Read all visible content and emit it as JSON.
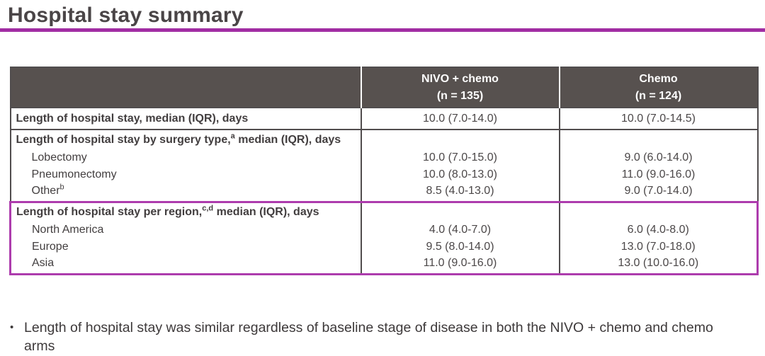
{
  "page": {
    "title": "Hospital stay summary",
    "bullet_glyph": "•",
    "bullet": "Length of hospital stay was similar regardless of baseline stage of disease in both the NIVO + chemo and chemo arms"
  },
  "colors": {
    "accent_rule": "#a12da3",
    "region_highlight_border": "#ad3cad",
    "header_bg": "#57514f",
    "header_text": "#ffffff",
    "table_border": "#514d4e",
    "body_text": "#423e3f"
  },
  "table": {
    "header": {
      "nivo": {
        "line1": "NIVO + chemo",
        "line2": "(n = 135)"
      },
      "chemo": {
        "line1": "Chemo",
        "line2": "(n = 124)"
      }
    },
    "row_overall": {
      "label": "Length of hospital stay, median (IQR), days",
      "nivo": "10.0 (7.0-14.0)",
      "chemo": "10.0 (7.0-14.5)"
    },
    "section_surgery": {
      "label_pre": "Length of hospital stay by surgery type,",
      "label_sup": "a",
      "label_post": " median (IQR), days",
      "items": [
        {
          "label": "Lobectomy",
          "sup": "",
          "nivo": "10.0 (7.0-15.0)",
          "chemo": "9.0 (6.0-14.0)"
        },
        {
          "label": "Pneumonectomy",
          "sup": "",
          "nivo": "10.0 (8.0-13.0)",
          "chemo": "11.0 (9.0-16.0)"
        },
        {
          "label": "Other",
          "sup": "b",
          "nivo": "8.5 (4.0-13.0)",
          "chemo": "9.0 (7.0-14.0)"
        }
      ]
    },
    "section_region": {
      "label_pre": "Length of hospital stay per region,",
      "label_sup": "c,d",
      "label_post": " median (IQR), days",
      "items": [
        {
          "label": "North America",
          "sup": "",
          "nivo": "4.0 (4.0-7.0)",
          "chemo": "6.0 (4.0-8.0)"
        },
        {
          "label": "Europe",
          "sup": "",
          "nivo": "9.5 (8.0-14.0)",
          "chemo": "13.0 (7.0-18.0)"
        },
        {
          "label": "Asia",
          "sup": "",
          "nivo": "11.0 (9.0-16.0)",
          "chemo": "13.0 (10.0-16.0)"
        }
      ]
    }
  }
}
